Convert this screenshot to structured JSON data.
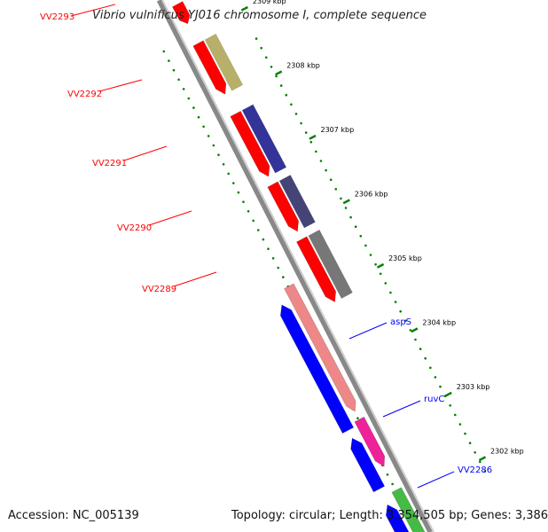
{
  "title": "Vibrio vulnificus YJ016 chromosome I, complete sequence",
  "footer": {
    "accession": "Accession: NC_005139",
    "summary": "Topology: circular; Length: 3,354,505 bp; Genes: 3,386"
  },
  "colors": {
    "forward_gene": "#ff0000",
    "reverse_gene": "#0000ff",
    "tick": "#008000",
    "tick_label": "#000000",
    "backbone": "#888888",
    "left_label": "#ff0000",
    "right_label": "#0000ff"
  },
  "kbp_ticks": [
    {
      "value": 2309,
      "label": "2309 kbp"
    },
    {
      "value": 2308,
      "label": "2308 kbp"
    },
    {
      "value": 2307,
      "label": "2307 kbp"
    },
    {
      "value": 2306,
      "label": "2306 kbp"
    },
    {
      "value": 2305,
      "label": "2305 kbp"
    },
    {
      "value": 2304,
      "label": "2304 kbp"
    },
    {
      "value": 2303,
      "label": "2303 kbp"
    },
    {
      "value": 2302,
      "label": "2302 kbp"
    }
  ],
  "left_gene_labels": [
    "VV2293",
    "VV2292",
    "VV2291",
    "VV2290",
    "VV2289"
  ],
  "right_gene_labels": [
    "aspS",
    "ruvC",
    "VV2286"
  ]
}
